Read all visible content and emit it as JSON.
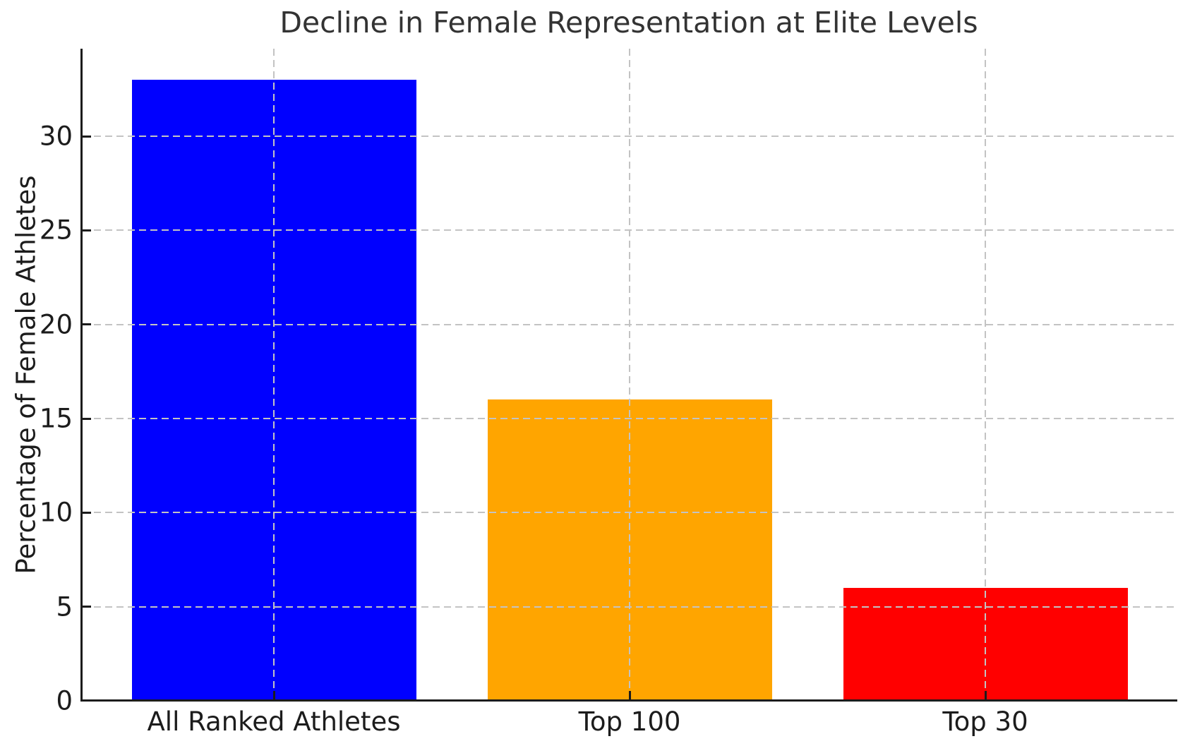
{
  "chart_data": {
    "type": "bar",
    "title": "Decline in Female Representation at Elite Levels",
    "categories": [
      "All Ranked Athletes",
      "Top 100",
      "Top 30"
    ],
    "values": [
      33,
      16,
      6
    ],
    "bar_colors": [
      "#0000ff",
      "#ffa500",
      "#ff0000"
    ],
    "xlabel": "",
    "ylabel": "Percentage of Female Athletes",
    "yticks": [
      0,
      5,
      10,
      15,
      20,
      25,
      30
    ],
    "ylim": [
      0,
      34.65
    ],
    "grid": {
      "visible": true,
      "style": "dashed",
      "axes": "both",
      "color": "#c3c3c3",
      "drawn_over_bars": true
    },
    "legend_position": "none",
    "axis_color": "#1c1c1c",
    "title_color": "#333333",
    "background_color": "#ffffff"
  }
}
